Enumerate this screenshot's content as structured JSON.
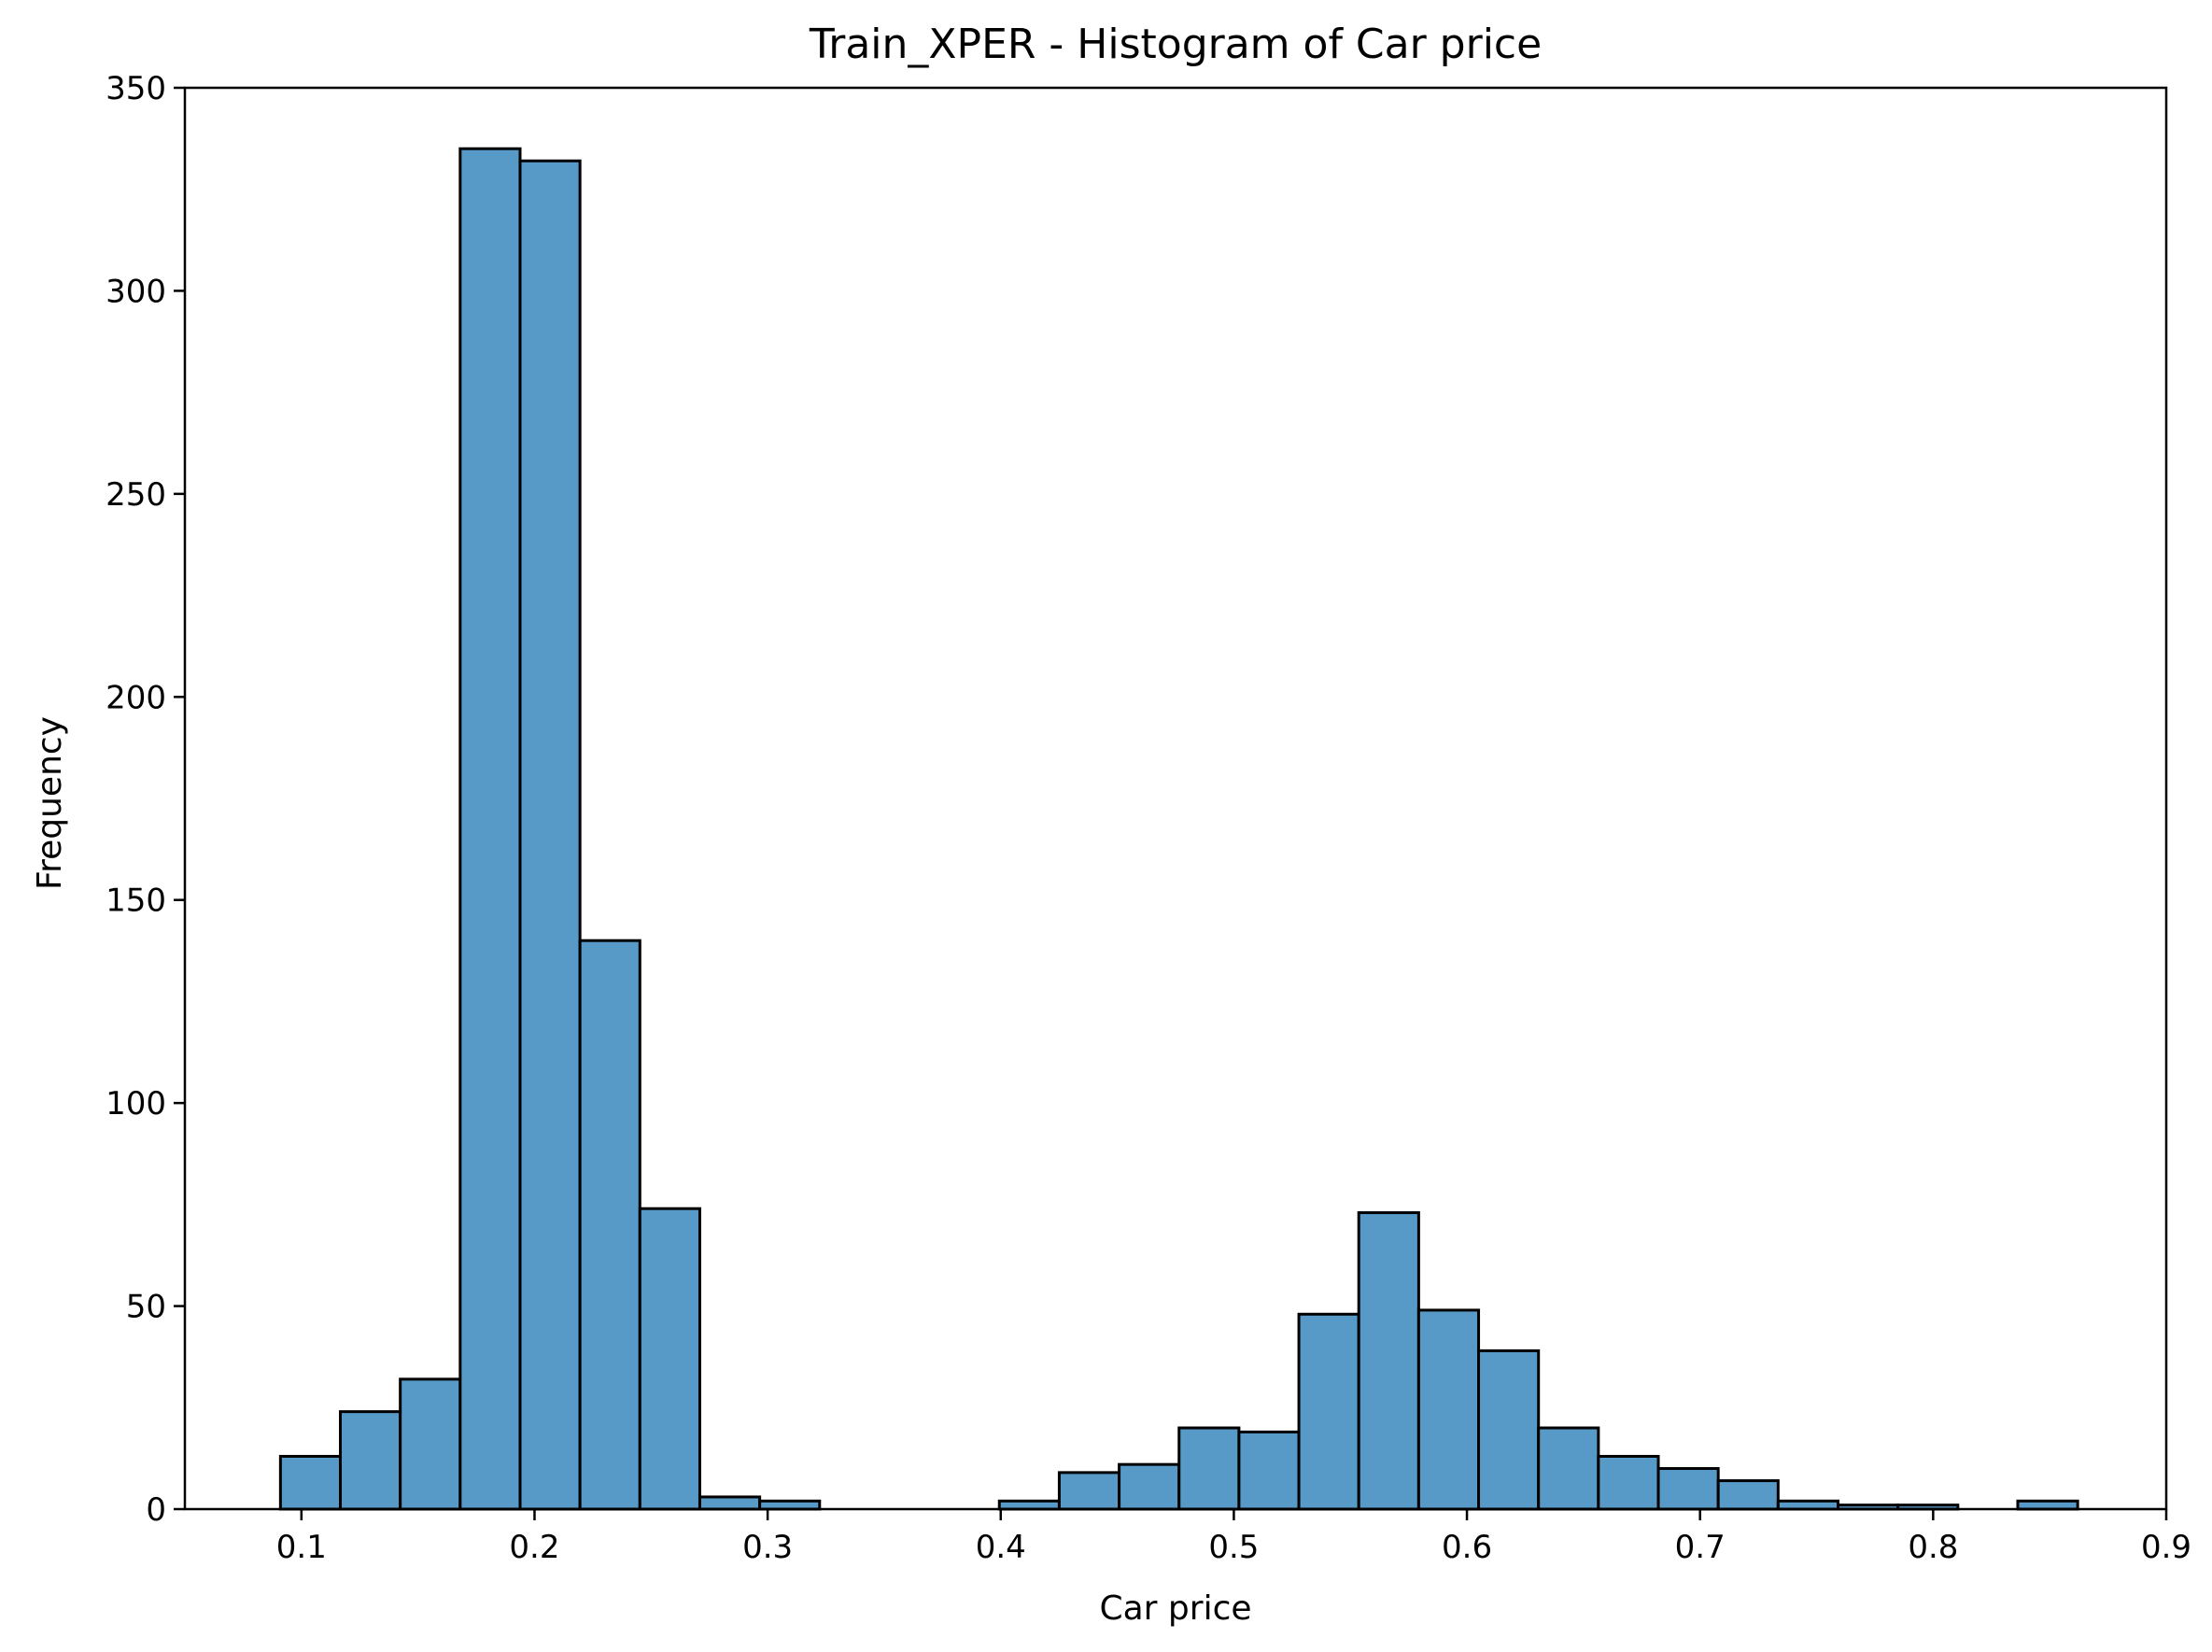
{
  "chart_data": {
    "type": "bar",
    "title": "Train_XPER - Histogram of Car price",
    "xlabel": "Car price",
    "ylabel": "Frequency",
    "xlim": [
      0.05,
      0.9
    ],
    "ylim": [
      0,
      350
    ],
    "grid": false,
    "bar_color": "#5799C7",
    "edge_color": "#000000",
    "xticks": [
      {
        "value": 0.1,
        "label": "0.1"
      },
      {
        "value": 0.2,
        "label": "0.2"
      },
      {
        "value": 0.3,
        "label": "0.3"
      },
      {
        "value": 0.4,
        "label": "0.4"
      },
      {
        "value": 0.5,
        "label": "0.5"
      },
      {
        "value": 0.6,
        "label": "0.6"
      },
      {
        "value": 0.7,
        "label": "0.7"
      },
      {
        "value": 0.8,
        "label": "0.8"
      },
      {
        "value": 0.9,
        "label": "0.9"
      }
    ],
    "yticks": [
      {
        "value": 0,
        "label": "0"
      },
      {
        "value": 50,
        "label": "50"
      },
      {
        "value": 100,
        "label": "100"
      },
      {
        "value": 150,
        "label": "150"
      },
      {
        "value": 200,
        "label": "200"
      },
      {
        "value": 250,
        "label": "250"
      },
      {
        "value": 300,
        "label": "300"
      },
      {
        "value": 350,
        "label": "350"
      }
    ],
    "bins": [
      {
        "x0": 0.091,
        "x1": 0.1167,
        "count": 13
      },
      {
        "x0": 0.1167,
        "x1": 0.1424,
        "count": 24
      },
      {
        "x0": 0.1424,
        "x1": 0.1681,
        "count": 32
      },
      {
        "x0": 0.1681,
        "x1": 0.1938,
        "count": 335
      },
      {
        "x0": 0.1938,
        "x1": 0.2195,
        "count": 332
      },
      {
        "x0": 0.2195,
        "x1": 0.2452,
        "count": 140
      },
      {
        "x0": 0.2452,
        "x1": 0.2709,
        "count": 74
      },
      {
        "x0": 0.2709,
        "x1": 0.2966,
        "count": 3
      },
      {
        "x0": 0.2966,
        "x1": 0.3223,
        "count": 2
      },
      {
        "x0": 0.3223,
        "x1": 0.348,
        "count": 0
      },
      {
        "x0": 0.348,
        "x1": 0.3737,
        "count": 0
      },
      {
        "x0": 0.3737,
        "x1": 0.3994,
        "count": 0
      },
      {
        "x0": 0.3994,
        "x1": 0.4251,
        "count": 2
      },
      {
        "x0": 0.4251,
        "x1": 0.4508,
        "count": 9
      },
      {
        "x0": 0.4508,
        "x1": 0.4765,
        "count": 11
      },
      {
        "x0": 0.4765,
        "x1": 0.5022,
        "count": 20
      },
      {
        "x0": 0.5022,
        "x1": 0.5279,
        "count": 19
      },
      {
        "x0": 0.5279,
        "x1": 0.5536,
        "count": 48
      },
      {
        "x0": 0.5536,
        "x1": 0.5793,
        "count": 73
      },
      {
        "x0": 0.5793,
        "x1": 0.605,
        "count": 49
      },
      {
        "x0": 0.605,
        "x1": 0.6307,
        "count": 39
      },
      {
        "x0": 0.6307,
        "x1": 0.6564,
        "count": 20
      },
      {
        "x0": 0.6564,
        "x1": 0.6821,
        "count": 13
      },
      {
        "x0": 0.6821,
        "x1": 0.7078,
        "count": 10
      },
      {
        "x0": 0.7078,
        "x1": 0.7335,
        "count": 7
      },
      {
        "x0": 0.7335,
        "x1": 0.7592,
        "count": 2
      },
      {
        "x0": 0.7592,
        "x1": 0.7849,
        "count": 1
      },
      {
        "x0": 0.7849,
        "x1": 0.8106,
        "count": 1
      },
      {
        "x0": 0.8106,
        "x1": 0.8363,
        "count": 0
      },
      {
        "x0": 0.8363,
        "x1": 0.862,
        "count": 2
      }
    ]
  }
}
